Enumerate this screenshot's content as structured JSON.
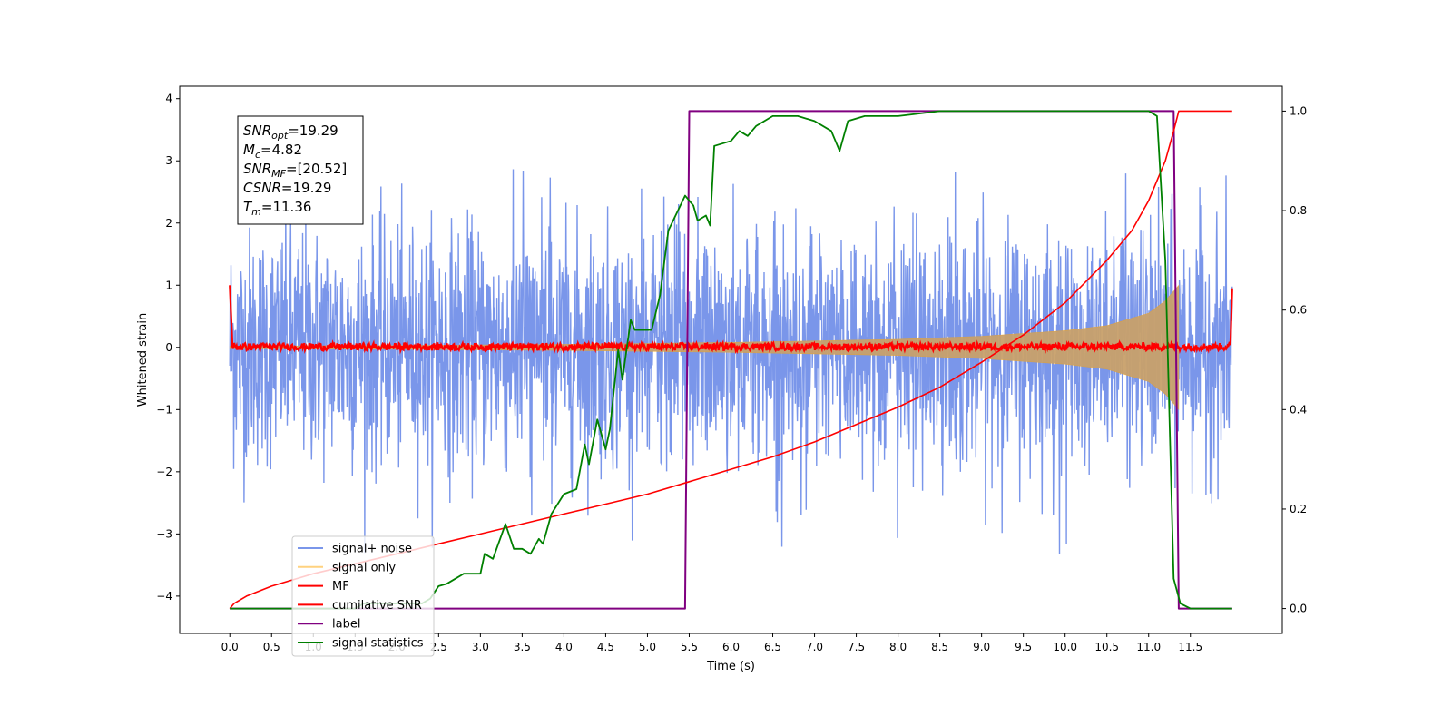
{
  "chart_data": {
    "type": "line",
    "xlabel": "Time (s)",
    "ylabel": "Whitened strain",
    "xlim": [
      -0.6,
      12.6
    ],
    "ylim": [
      -4.6,
      4.2
    ],
    "y2lim": [
      -0.05,
      1.05
    ],
    "xticks": [
      0.0,
      0.5,
      1.0,
      1.5,
      2.0,
      2.5,
      3.0,
      3.5,
      4.0,
      4.5,
      5.0,
      5.5,
      6.0,
      6.5,
      7.0,
      7.5,
      8.0,
      8.5,
      9.0,
      9.5,
      10.0,
      10.5,
      11.0,
      11.5
    ],
    "xtick_labels": [
      "0.0",
      "0.5",
      "1.0",
      "1.5",
      "2.0",
      "2.5",
      "3.0",
      "3.5",
      "4.0",
      "4.5",
      "5.0",
      "5.5",
      "6.0",
      "6.5",
      "7.0",
      "7.5",
      "8.0",
      "8.5",
      "9.0",
      "9.5",
      "10.0",
      "10.5",
      "11.0",
      "11.5"
    ],
    "yticks": [
      -4,
      -3,
      -2,
      -1,
      0,
      1,
      2,
      3,
      4
    ],
    "ytick_labels": [
      "−4",
      "−3",
      "−2",
      "−1",
      "0",
      "1",
      "2",
      "3",
      "4"
    ],
    "y2ticks": [
      0.0,
      0.2,
      0.4,
      0.6,
      0.8,
      1.0
    ],
    "y2tick_labels": [
      "0.0",
      "0.2",
      "0.4",
      "0.6",
      "0.8",
      "1.0"
    ],
    "annotation": {
      "lines": [
        {
          "main": "SNR",
          "sub": "opt",
          "value": "=19.29"
        },
        {
          "main": "M",
          "sub": "c",
          "value": "=4.82"
        },
        {
          "main": "SNR",
          "sub": "MF",
          "value": "=[20.52]"
        },
        {
          "main": "CSNR",
          "sub": "",
          "value": "=19.29"
        },
        {
          "main": "T",
          "sub": "m",
          "value": "=11.36"
        }
      ]
    },
    "legend": {
      "placement": "lower-left",
      "entries": [
        {
          "label": "signal+ noise",
          "color": "#4169e1"
        },
        {
          "label": "signal only",
          "color": "#ffa500"
        },
        {
          "label": "MF",
          "color": "#ff0000"
        },
        {
          "label": "cumilative SNR",
          "color": "#ff0000"
        },
        {
          "label": "label",
          "color": "#800080"
        },
        {
          "label": "signal statistics",
          "color": "#008000"
        }
      ]
    },
    "series": [
      {
        "name": "signal+ noise",
        "axis": "left",
        "color": "#4169e1",
        "x_range": [
          0.0,
          12.0
        ],
        "noise_amplitude": [
          -2.9,
          2.9
        ],
        "note_kind": "dense_noise"
      },
      {
        "name": "signal only",
        "axis": "left",
        "color": "#ffa500",
        "envelope_x": [
          0.0,
          2.0,
          4.0,
          6.0,
          8.0,
          9.0,
          10.0,
          10.5,
          11.0,
          11.2,
          11.36
        ],
        "envelope_y": [
          0.02,
          0.03,
          0.05,
          0.08,
          0.13,
          0.18,
          0.27,
          0.35,
          0.55,
          0.75,
          1.0
        ]
      },
      {
        "name": "MF",
        "axis": "left",
        "color": "#ff0000",
        "x": [
          0.0,
          0.03,
          11.98,
          12.0
        ],
        "y": [
          1.0,
          0.05,
          0.05,
          0.95
        ],
        "jitter": 0.06
      },
      {
        "name": "cumilative SNR",
        "axis": "right",
        "color": "#ff0000",
        "x": [
          0.0,
          0.05,
          0.2,
          0.5,
          1.0,
          1.5,
          2.0,
          2.5,
          3.0,
          3.5,
          4.0,
          4.5,
          5.0,
          5.5,
          6.0,
          6.5,
          7.0,
          7.5,
          8.0,
          8.5,
          9.0,
          9.5,
          10.0,
          10.5,
          10.8,
          11.0,
          11.2,
          11.3,
          11.36,
          12.0
        ],
        "y": [
          0.0,
          0.01,
          0.025,
          0.045,
          0.07,
          0.09,
          0.11,
          0.13,
          0.15,
          0.17,
          0.19,
          0.21,
          0.23,
          0.255,
          0.28,
          0.305,
          0.335,
          0.37,
          0.405,
          0.445,
          0.495,
          0.55,
          0.615,
          0.7,
          0.76,
          0.82,
          0.9,
          0.96,
          1.0,
          1.0
        ]
      },
      {
        "name": "label",
        "axis": "right",
        "color": "#800080",
        "x": [
          0.0,
          5.45,
          5.5,
          11.3,
          11.36,
          12.0
        ],
        "y": [
          0.0,
          0.0,
          1.0,
          1.0,
          0.0,
          0.0
        ]
      },
      {
        "name": "signal statistics",
        "axis": "right",
        "color": "#008000",
        "x": [
          0.0,
          0.5,
          1.0,
          1.5,
          1.6,
          2.0,
          2.3,
          2.4,
          2.5,
          2.6,
          2.7,
          2.8,
          3.0,
          3.05,
          3.15,
          3.3,
          3.4,
          3.5,
          3.6,
          3.7,
          3.75,
          3.85,
          4.0,
          4.15,
          4.25,
          4.3,
          4.4,
          4.5,
          4.55,
          4.65,
          4.7,
          4.8,
          4.85,
          4.95,
          5.05,
          5.15,
          5.25,
          5.45,
          5.55,
          5.6,
          5.7,
          5.75,
          5.8,
          6.0,
          6.1,
          6.2,
          6.3,
          6.5,
          6.8,
          7.0,
          7.2,
          7.3,
          7.4,
          7.6,
          8.0,
          8.5,
          9.0,
          10.0,
          10.5,
          11.0,
          11.1,
          11.2,
          11.3,
          11.38,
          11.5,
          12.0
        ],
        "y": [
          0.0,
          0.0,
          0.0,
          0.0,
          0.01,
          0.01,
          0.01,
          0.02,
          0.045,
          0.05,
          0.06,
          0.07,
          0.07,
          0.11,
          0.1,
          0.17,
          0.12,
          0.12,
          0.11,
          0.14,
          0.13,
          0.19,
          0.23,
          0.24,
          0.33,
          0.29,
          0.38,
          0.32,
          0.36,
          0.52,
          0.46,
          0.58,
          0.56,
          0.56,
          0.56,
          0.63,
          0.76,
          0.83,
          0.81,
          0.78,
          0.79,
          0.77,
          0.93,
          0.94,
          0.96,
          0.95,
          0.97,
          0.99,
          0.99,
          0.98,
          0.96,
          0.92,
          0.98,
          0.99,
          0.99,
          1.0,
          1.0,
          1.0,
          1.0,
          1.0,
          0.99,
          0.7,
          0.06,
          0.01,
          0.0,
          0.0
        ]
      }
    ]
  }
}
